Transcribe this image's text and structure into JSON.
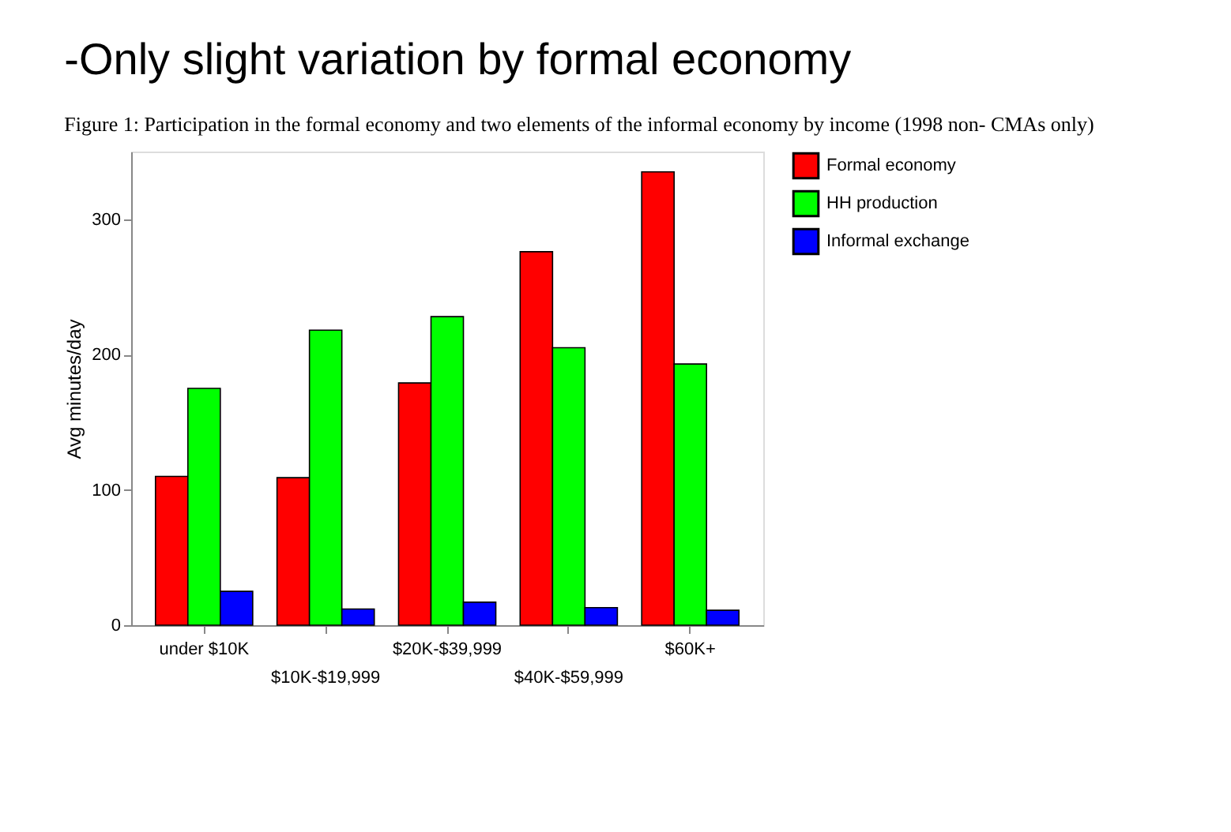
{
  "chart_data": {
    "type": "bar",
    "title": "-Only slight variation by formal economy",
    "subtitle": "Figure 1: Participation in the formal economy and two elements of the informal economy by income (1998 non- CMAs only)",
    "ylabel": "Avg minutes/day",
    "categories": [
      "under $10K",
      "$10K-$19,999",
      "$20K-$39,999",
      "$40K-$59,999",
      "$60K+"
    ],
    "series": [
      {
        "name": "Formal economy",
        "color": "#ff0000",
        "values": [
          110,
          109,
          179,
          276,
          335
        ]
      },
      {
        "name": "HH production",
        "color": "#00ff00",
        "values": [
          175,
          218,
          228,
          205,
          193
        ]
      },
      {
        "name": "Informal exchange",
        "color": "#0000ff",
        "values": [
          25,
          12,
          17,
          13,
          11
        ]
      }
    ],
    "ylim": [
      0,
      350
    ],
    "yticks": [
      0,
      100,
      200,
      300
    ],
    "grid": false,
    "legend": "right"
  }
}
